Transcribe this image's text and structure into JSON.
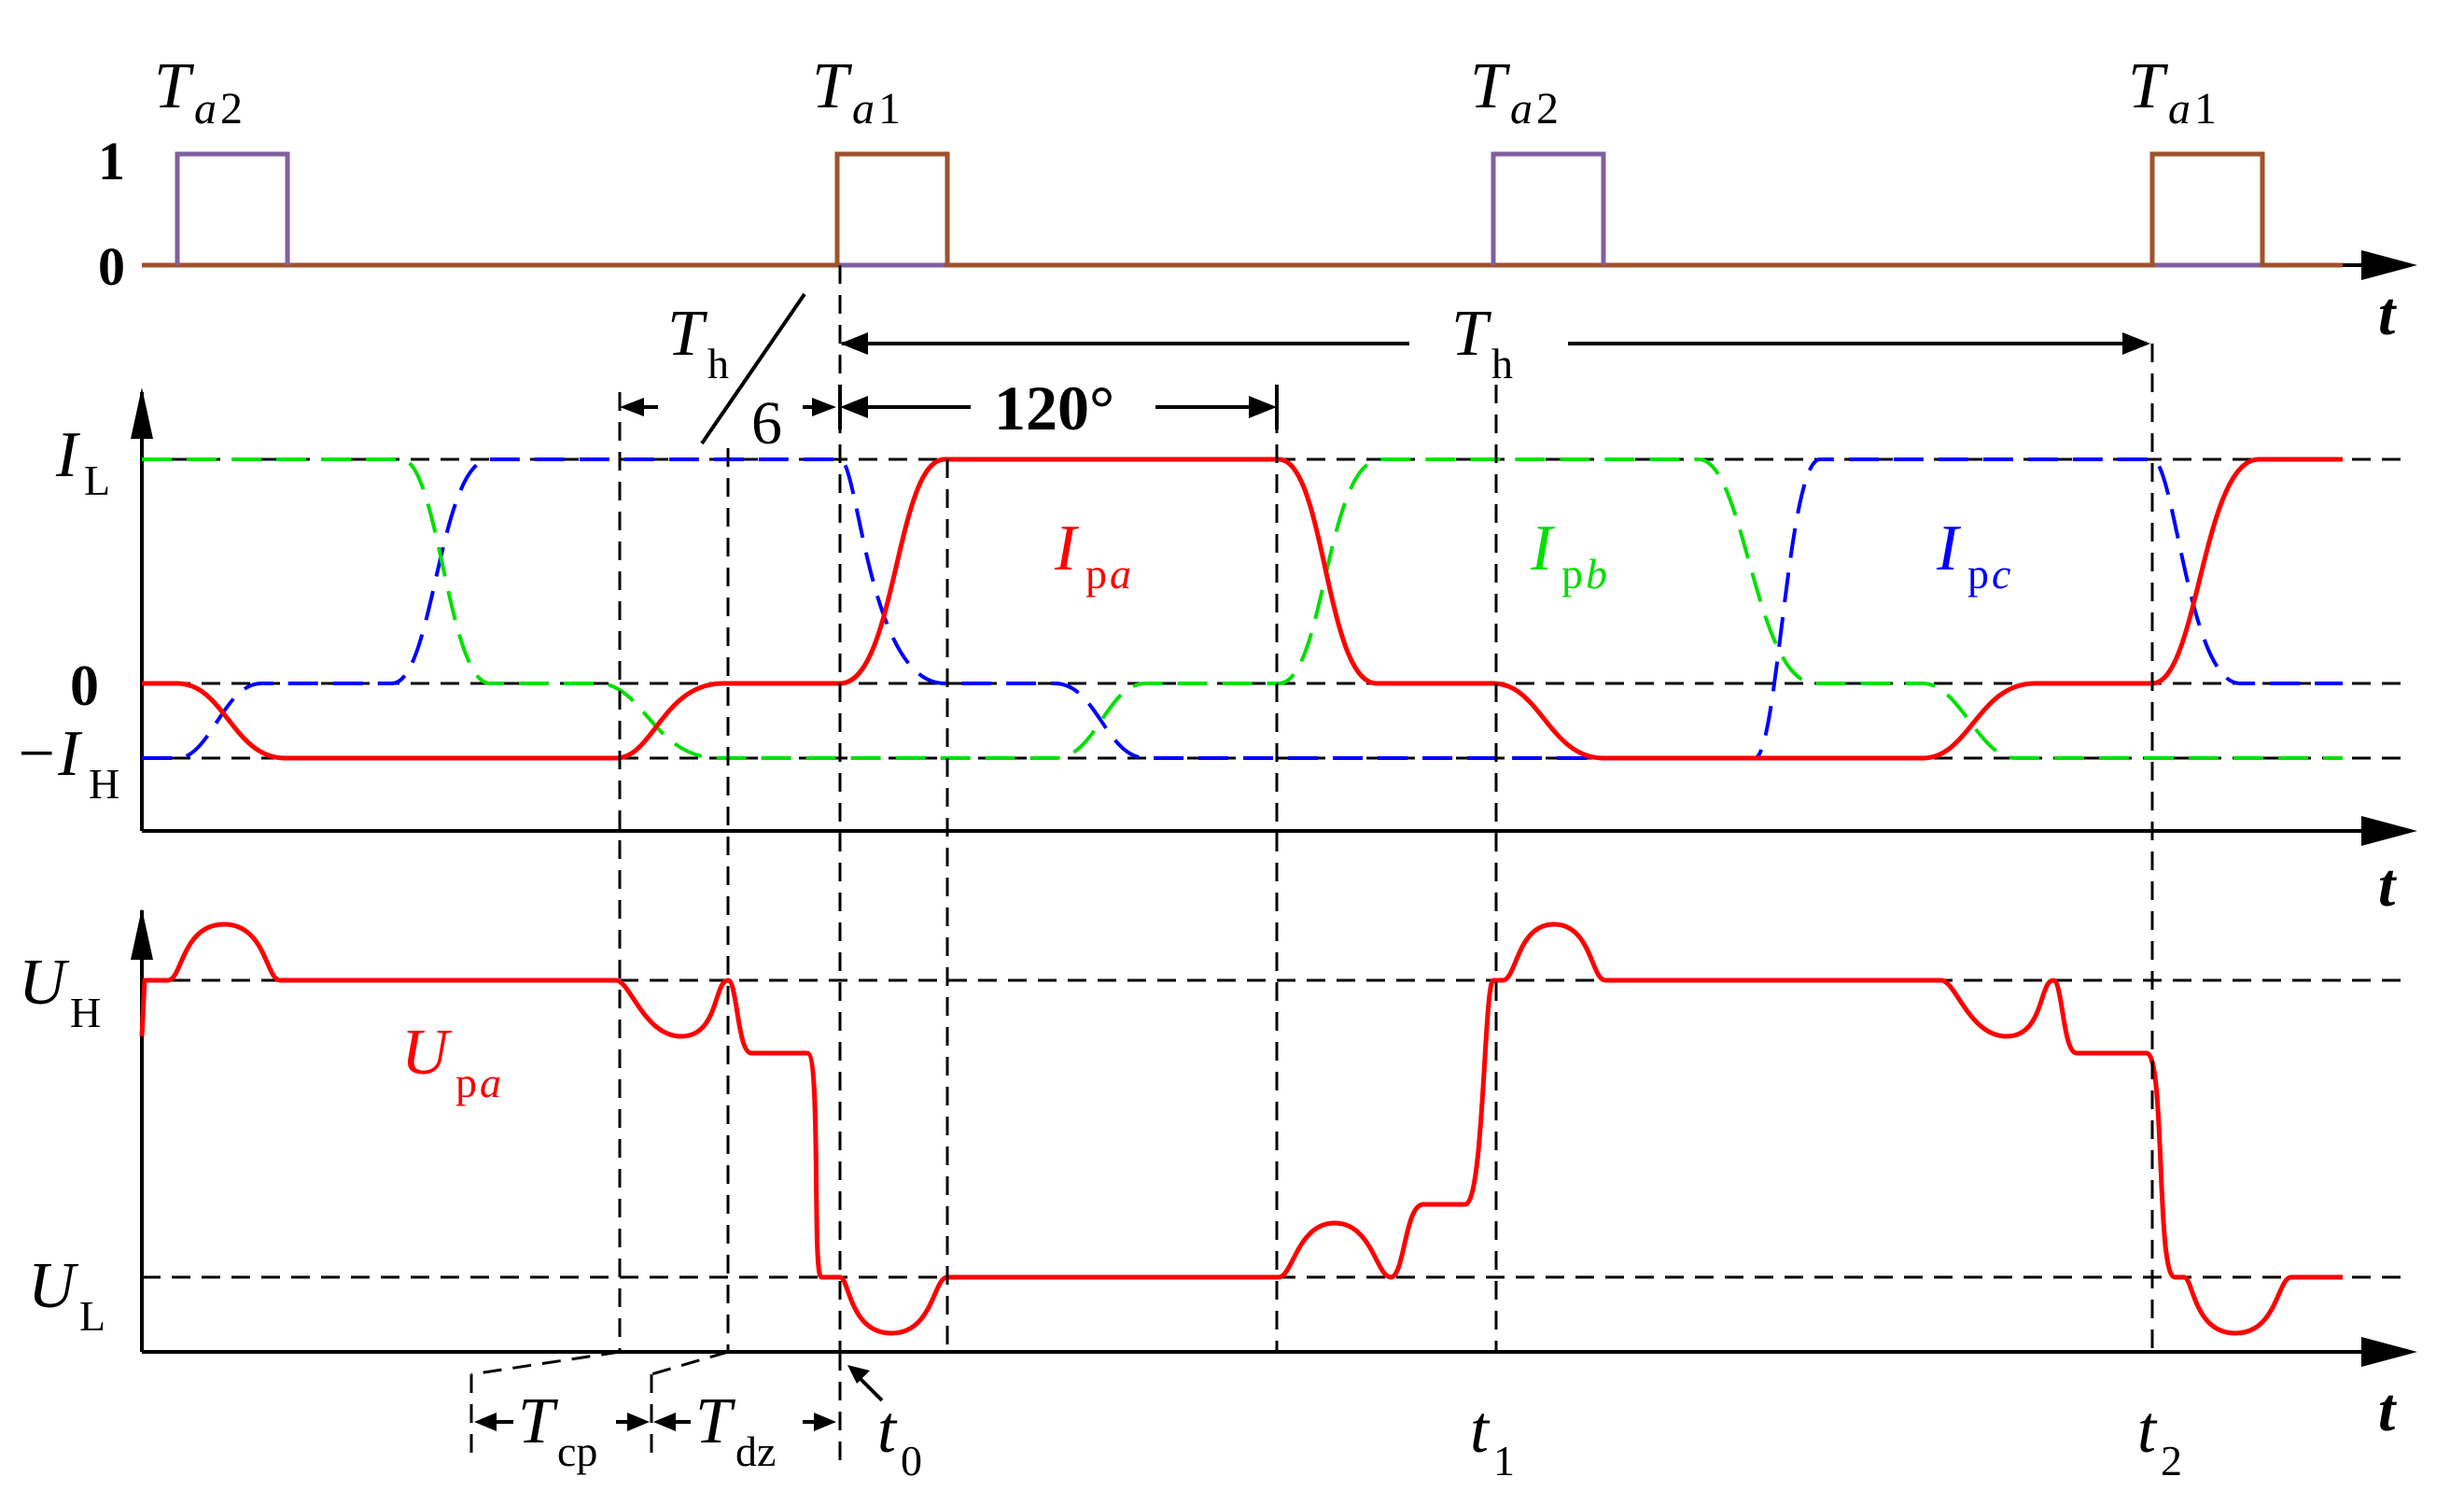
{
  "colors": {
    "axis": "#000000",
    "phase_a": "#ff0000",
    "phase_b": "#00e000",
    "phase_c": "#0000ff",
    "pulse_a1": "#a0522d",
    "pulse_a2": "#8060a0"
  },
  "pulse_panel": {
    "level_one": "1",
    "level_zero": "0",
    "pulses": [
      {
        "main": "T",
        "sub": "a",
        "num": "2"
      },
      {
        "main": "T",
        "sub": "a",
        "num": "1"
      },
      {
        "main": "T",
        "sub": "a",
        "num": "2"
      },
      {
        "main": "T",
        "sub": "a",
        "num": "1"
      }
    ],
    "time_label": "t"
  },
  "annotations": {
    "period_main": "T",
    "period_sub": "h",
    "sixth_main": "T",
    "sixth_sub": "h",
    "sixth_den": "6",
    "angle": "120°"
  },
  "current_panel": {
    "il_main": "I",
    "il_sub": "L",
    "zero": "0",
    "ih_main": "−I",
    "ih_sub": "H",
    "ipa_main": "I",
    "ipa_sub_p": "p",
    "ipa_sub_i": "a",
    "ipb_main": "I",
    "ipb_sub_p": "p",
    "ipb_sub_i": "b",
    "ipc_main": "I",
    "ipc_sub_p": "p",
    "ipc_sub_i": "c",
    "time_label": "t"
  },
  "voltage_panel": {
    "uh_main": "U",
    "uh_sub": "H",
    "ul_main": "U",
    "ul_sub": "L",
    "upa_main": "U",
    "upa_sub_p": "p",
    "upa_sub_i": "a",
    "time_label": "t",
    "tcp_main": "T",
    "tcp_sub": "cp",
    "tdz_main": "T",
    "tdz_sub": "dz",
    "t0_main": "t",
    "t0_sub": "0",
    "t1_main": "t",
    "t1_sub": "1",
    "t2_main": "t",
    "t2_sub": "2"
  }
}
